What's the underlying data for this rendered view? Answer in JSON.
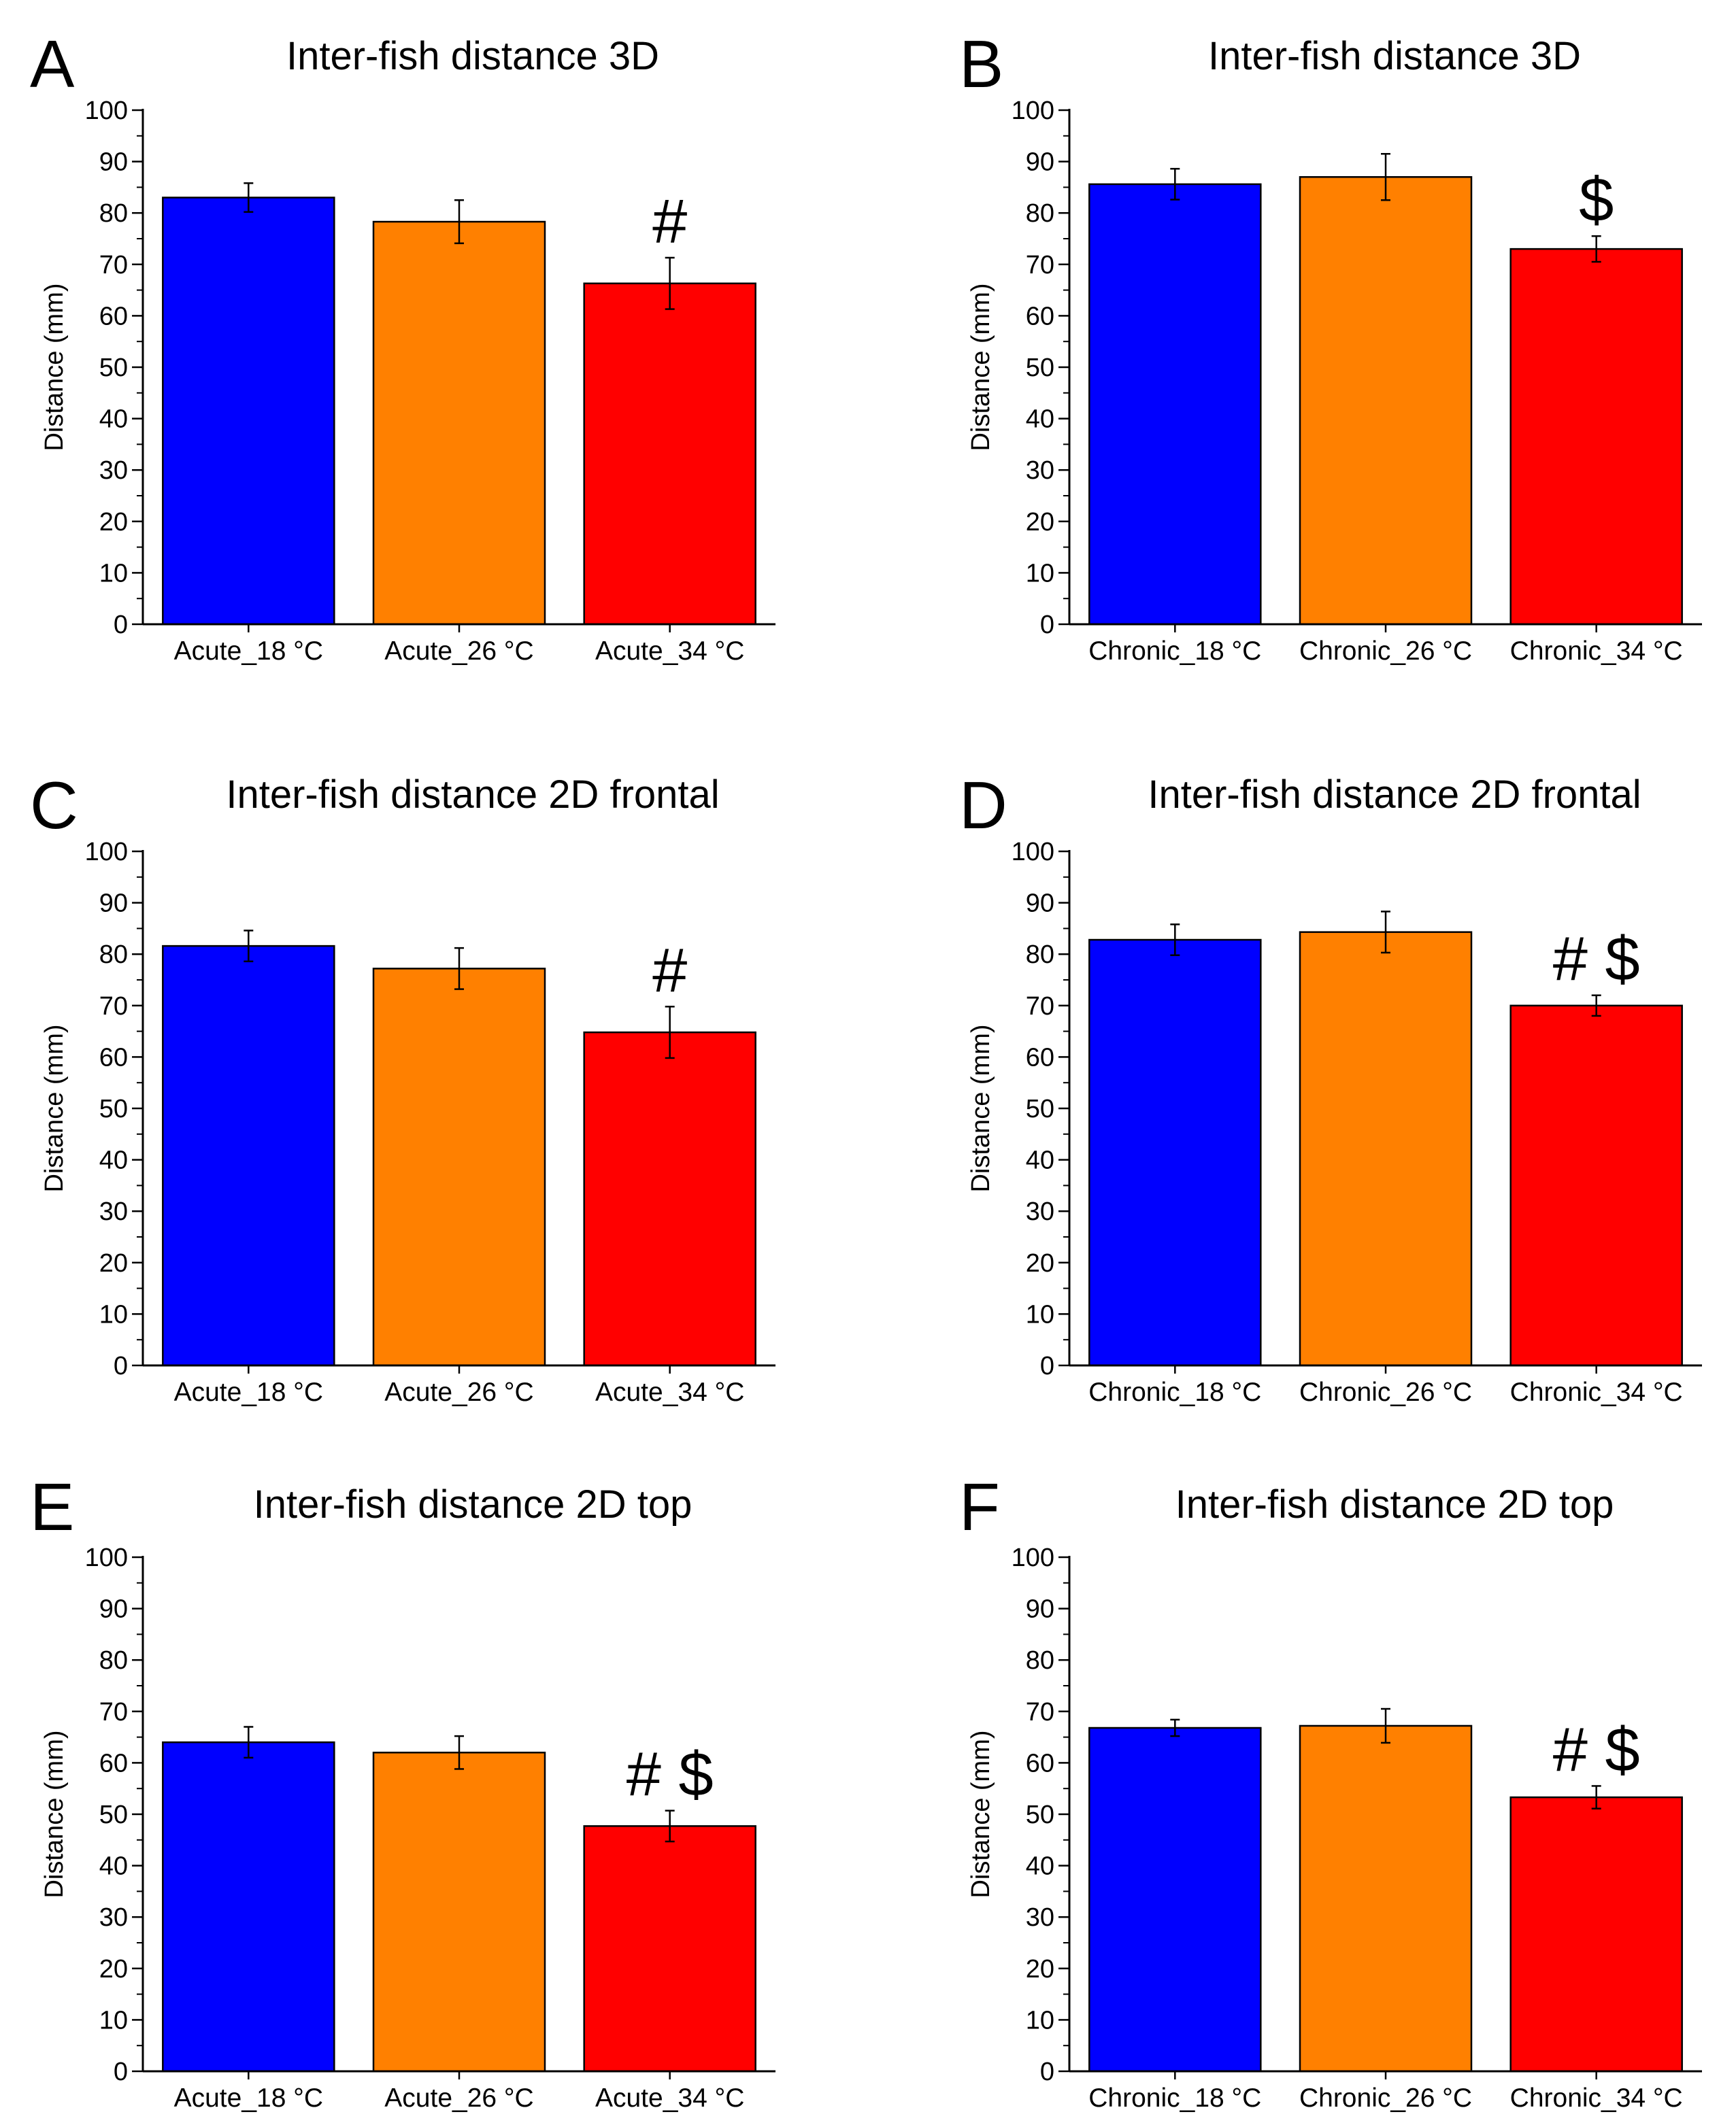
{
  "chart_data": [
    {
      "type": "bar",
      "panel": "A",
      "title": "Inter-fish distance 3D",
      "ylabel": "Distance (mm)",
      "xlabel": "",
      "ylim": [
        0,
        100
      ],
      "yticks": [
        0,
        10,
        20,
        30,
        40,
        50,
        60,
        70,
        80,
        90,
        100
      ],
      "categories": [
        "Acute_18 °C",
        "Acute_26 °C",
        "Acute_34 °C"
      ],
      "values": [
        83,
        78.3,
        66.3
      ],
      "errors": [
        2.8,
        4.2,
        5
      ],
      "colors": [
        "#0000ff",
        "#ff8000",
        "#ff0000"
      ],
      "annotations": [
        {
          "category": "Acute_34 °C",
          "text": "#"
        }
      ]
    },
    {
      "type": "bar",
      "panel": "B",
      "title": "Inter-fish distance 3D",
      "ylabel": "Distance (mm)",
      "xlabel": "",
      "ylim": [
        0,
        100
      ],
      "yticks": [
        0,
        10,
        20,
        30,
        40,
        50,
        60,
        70,
        80,
        90,
        100
      ],
      "categories": [
        "Chronic_18 °C",
        "Chronic_26 °C",
        "Chronic_34 °C"
      ],
      "values": [
        85.6,
        87,
        73
      ],
      "errors": [
        3,
        4.5,
        2.5
      ],
      "colors": [
        "#0000ff",
        "#ff8000",
        "#ff0000"
      ],
      "annotations": [
        {
          "category": "Chronic_34 °C",
          "text": "$"
        }
      ]
    },
    {
      "type": "bar",
      "panel": "C",
      "title": "Inter-fish distance 2D frontal",
      "ylabel": "Distance (mm)",
      "xlabel": "",
      "ylim": [
        0,
        100
      ],
      "yticks": [
        0,
        10,
        20,
        30,
        40,
        50,
        60,
        70,
        80,
        90,
        100
      ],
      "categories": [
        "Acute_18 °C",
        "Acute_26 °C",
        "Acute_34 °C"
      ],
      "values": [
        81.6,
        77.2,
        64.8
      ],
      "errors": [
        3,
        4,
        5
      ],
      "colors": [
        "#0000ff",
        "#ff8000",
        "#ff0000"
      ],
      "annotations": [
        {
          "category": "Acute_34 °C",
          "text": "#"
        }
      ]
    },
    {
      "type": "bar",
      "panel": "D",
      "title": "Inter-fish distance 2D frontal",
      "ylabel": "Distance (mm)",
      "xlabel": "",
      "ylim": [
        0,
        100
      ],
      "yticks": [
        0,
        10,
        20,
        30,
        40,
        50,
        60,
        70,
        80,
        90,
        100
      ],
      "categories": [
        "Chronic_18 °C",
        "Chronic_26 °C",
        "Chronic_34 °C"
      ],
      "values": [
        82.8,
        84.3,
        70
      ],
      "errors": [
        3,
        4,
        2
      ],
      "colors": [
        "#0000ff",
        "#ff8000",
        "#ff0000"
      ],
      "annotations": [
        {
          "category": "Chronic_34 °C",
          "text": "# $"
        }
      ]
    },
    {
      "type": "bar",
      "panel": "E",
      "title": "Inter-fish distance 2D top",
      "ylabel": "Distance (mm)",
      "xlabel": "",
      "ylim": [
        0,
        100
      ],
      "yticks": [
        0,
        10,
        20,
        30,
        40,
        50,
        60,
        70,
        80,
        90,
        100
      ],
      "categories": [
        "Acute_18 °C",
        "Acute_26 °C",
        "Acute_34 °C"
      ],
      "values": [
        64,
        62,
        47.7
      ],
      "errors": [
        3,
        3.2,
        3
      ],
      "colors": [
        "#0000ff",
        "#ff8000",
        "#ff0000"
      ],
      "annotations": [
        {
          "category": "Acute_34 °C",
          "text": "# $"
        }
      ]
    },
    {
      "type": "bar",
      "panel": "F",
      "title": "Inter-fish distance 2D top",
      "ylabel": "Distance (mm)",
      "xlabel": "",
      "ylim": [
        0,
        100
      ],
      "yticks": [
        0,
        10,
        20,
        30,
        40,
        50,
        60,
        70,
        80,
        90,
        100
      ],
      "categories": [
        "Chronic_18 °C",
        "Chronic_26 °C",
        "Chronic_34 °C"
      ],
      "values": [
        66.8,
        67.2,
        53.3
      ],
      "errors": [
        1.6,
        3.3,
        2.2
      ],
      "colors": [
        "#0000ff",
        "#ff8000",
        "#ff0000"
      ],
      "annotations": [
        {
          "category": "Chronic_34 °C",
          "text": "# $"
        }
      ]
    }
  ]
}
